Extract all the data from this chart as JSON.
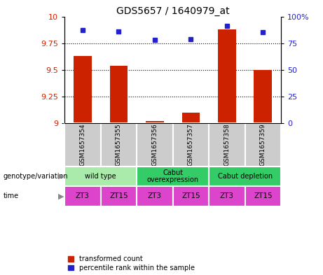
{
  "title": "GDS5657 / 1640979_at",
  "samples": [
    "GSM1657354",
    "GSM1657355",
    "GSM1657356",
    "GSM1657357",
    "GSM1657358",
    "GSM1657359"
  ],
  "transformed_counts": [
    9.63,
    9.54,
    9.02,
    9.1,
    9.88,
    9.5
  ],
  "percentile_ranks": [
    87,
    86,
    78,
    79,
    91,
    85
  ],
  "ylim_left": [
    9.0,
    10.0
  ],
  "ylim_right": [
    0,
    100
  ],
  "yticks_left": [
    9.0,
    9.25,
    9.5,
    9.75,
    10.0
  ],
  "yticks_right": [
    0,
    25,
    50,
    75,
    100
  ],
  "ytick_labels_left": [
    "9",
    "9.25",
    "9.5",
    "9.75",
    "10"
  ],
  "ytick_labels_right": [
    "0",
    "25",
    "50",
    "75",
    "100%"
  ],
  "bar_color": "#cc2200",
  "dot_color": "#2222cc",
  "dotted_lines": [
    9.25,
    9.5,
    9.75
  ],
  "genotype_groups": [
    {
      "label": "wild type",
      "start": 0,
      "end": 2,
      "color": "#aaeaaa"
    },
    {
      "label": "Cabut\noverexpression",
      "start": 2,
      "end": 4,
      "color": "#33cc66"
    },
    {
      "label": "Cabut depletion",
      "start": 4,
      "end": 6,
      "color": "#33cc66"
    }
  ],
  "time_labels": [
    "ZT3",
    "ZT15",
    "ZT3",
    "ZT15",
    "ZT3",
    "ZT15"
  ],
  "time_color": "#dd44cc",
  "sample_bg_color": "#cccccc",
  "legend_red_label": "transformed count",
  "legend_blue_label": "percentile rank within the sample",
  "left_label_genotype": "genotype/variation",
  "left_label_time": "time",
  "bar_width": 0.5
}
